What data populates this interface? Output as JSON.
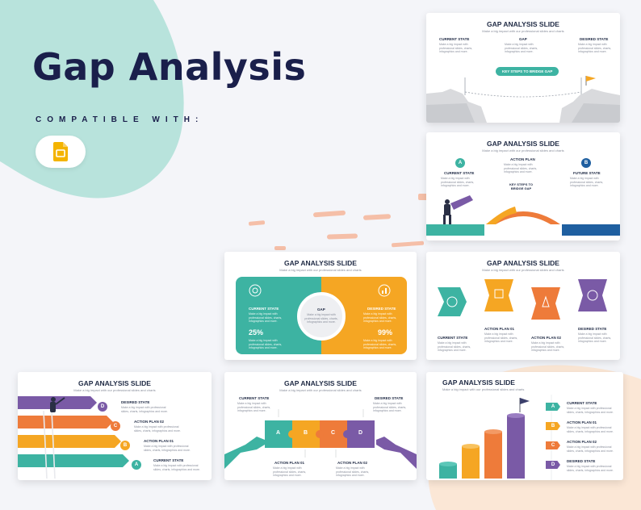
{
  "hero": {
    "title": "Gap Analysis",
    "compatible": "COMPATIBLE WITH:"
  },
  "colors": {
    "teal": "#3db3a2",
    "orange": "#f5a623",
    "coral": "#ee7b3a",
    "purple": "#7a5aa6",
    "navy": "#1a1f4b"
  },
  "slides": {
    "common_title": "GAP ANALYSIS SLIDE",
    "common_sub": "Make a big impact with our professional slides and charts",
    "placeholder_text": "Make a big impact with professional slides, charts, infographics and more.",
    "s1": {
      "current": "CURRENT STATE",
      "gap": "GAP",
      "desired": "DESIRED STATE",
      "button": "KEY STEPS TO BRIDGE GAP"
    },
    "s2": {
      "a": "A",
      "b": "B",
      "current": "CURRENT STATE",
      "action": "ACTION PLAN",
      "future": "FUTURE STATE",
      "keysteps": "KEY STEPS TO\nBRIDGE GAP"
    },
    "s3": {
      "current": "CURRENT STATE",
      "gap": "GAP",
      "desired": "DESIRED STATE",
      "pct_left": "25%",
      "pct_right": "99%"
    },
    "s4": {
      "current": "CURRENT STATE",
      "plan1": "ACTION PLAN 01",
      "plan2": "ACTION PLAN 02",
      "desired": "DESIRED STATE"
    },
    "s5": {
      "desired": "DESIRED STATE",
      "plan2": "ACTION PLAN 02",
      "plan1": "ACTION PLAN 01",
      "current": "CURRENT STATE",
      "letters": [
        "D",
        "C",
        "B",
        "A"
      ]
    },
    "s6": {
      "current": "CURRENT STATE",
      "desired": "DESIRED STATE",
      "plan1": "ACTION PLAN 01",
      "plan2": "ACTION PLAN 02",
      "letters": [
        "A",
        "B",
        "C",
        "D"
      ]
    },
    "s7": {
      "current": "CURRENT STATE",
      "plan1": "ACTION PLAN 01",
      "plan2": "ACTION PLAN 02",
      "desired": "DESIRED STATE",
      "letters": [
        "A",
        "B",
        "C",
        "D"
      ]
    }
  }
}
